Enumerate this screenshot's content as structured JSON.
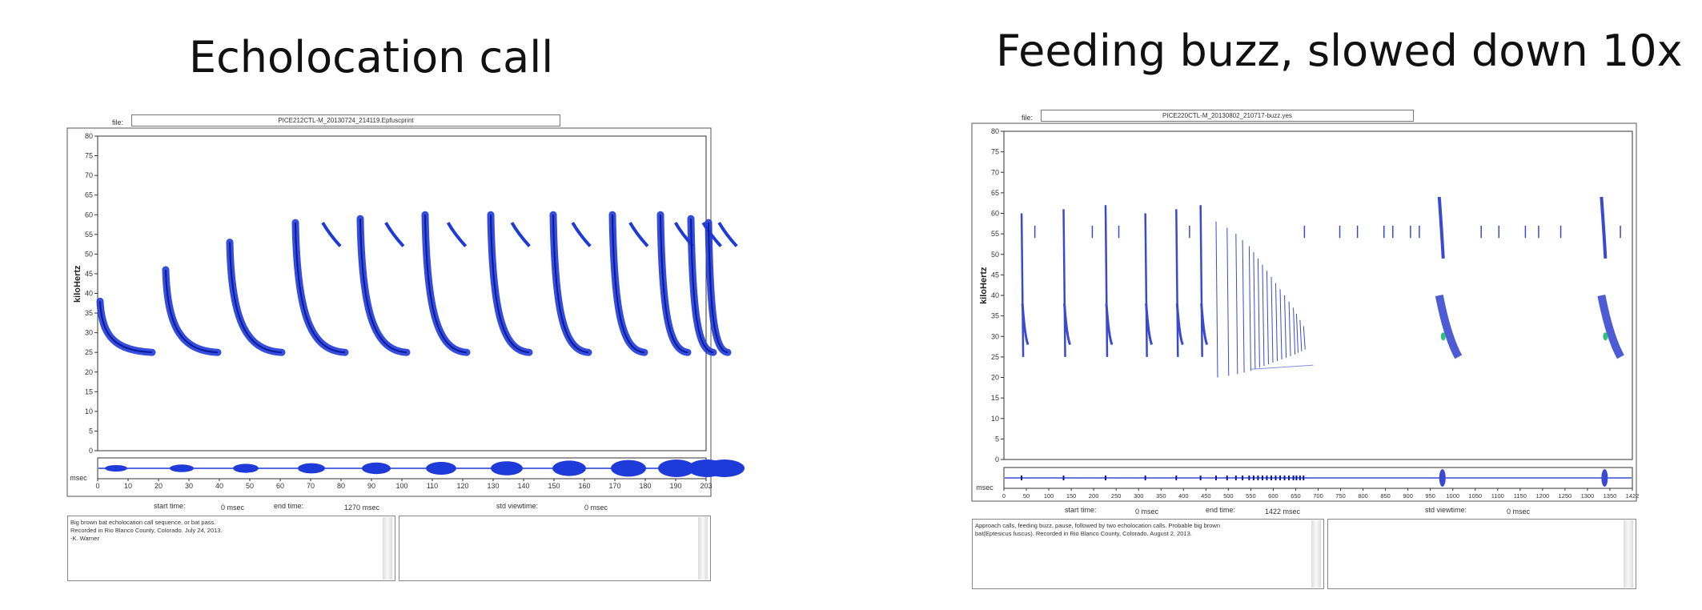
{
  "titles": {
    "left": "Echolocation call",
    "right": "Feeding buzz, slowed down 10x"
  },
  "left_viewer": {
    "file_label": "file:",
    "file_name": "PICE212CTL-M_20130724_214119.Epfuscprint",
    "y_axis_label": "kiloHertz",
    "y_ticks": [
      "0",
      "5",
      "10",
      "15",
      "20",
      "25",
      "30",
      "35",
      "40",
      "45",
      "50",
      "55",
      "60",
      "65",
      "70",
      "75",
      "80"
    ],
    "x_unit": "msec",
    "x_ticks": [
      "0",
      "10",
      "20",
      "30",
      "40",
      "50",
      "60",
      "70",
      "80",
      "90",
      "100",
      "110",
      "120",
      "130",
      "140",
      "150",
      "160",
      "170",
      "180",
      "190",
      "203"
    ],
    "start_time_label": "start time:",
    "start_time_value": "0 msec",
    "end_time_label": "end time:",
    "end_time_value": "1270 msec",
    "std_viewtime_label": "std viewtime:",
    "std_viewtime_value": "0 msec",
    "notes": "Big brown bat echolocation call sequence, or bat pass.\nRecorded in Rio Blanco County, Colorado. July 24, 2013.\n-K. Warner",
    "colors": {
      "call": "#1e3ad8",
      "call_dark": "#0a1a9a",
      "frame": "#333333"
    }
  },
  "right_viewer": {
    "file_label": "file:",
    "file_name": "PICE220CTL-M_20130802_210717-buzz.yes",
    "y_axis_label": "kiloHertz",
    "y_ticks": [
      "0",
      "5",
      "10",
      "15",
      "20",
      "25",
      "30",
      "35",
      "40",
      "45",
      "50",
      "55",
      "60",
      "65",
      "70",
      "75",
      "80"
    ],
    "x_unit": "msec",
    "x_ticks": [
      "0",
      "50",
      "100",
      "150",
      "200",
      "250",
      "300",
      "350",
      "400",
      "450",
      "500",
      "550",
      "600",
      "650",
      "700",
      "750",
      "800",
      "850",
      "900",
      "950",
      "1000",
      "1050",
      "1100",
      "1150",
      "1200",
      "1250",
      "1300",
      "1350",
      "1422"
    ],
    "start_time_label": "start time:",
    "start_time_value": "0 msec",
    "end_time_label": "end time:",
    "end_time_value": "1422 msec",
    "std_viewtime_label": "std viewtime:",
    "std_viewtime_value": "0 msec",
    "notes": "Approach calls, feeding buzz, pause, followed by two echolocation calls. Probable big brown\nbat(Eptesicus fuscus). Recorded in Rio Blanco County, Colorado. August 2, 2013.",
    "colors": {
      "call": "#3a4ad0",
      "call_dark": "#0a1a9a",
      "frame": "#333333"
    }
  }
}
